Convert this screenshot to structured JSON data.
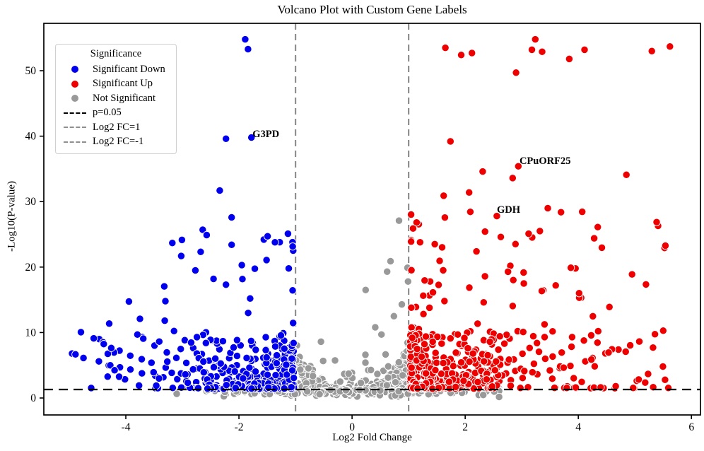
{
  "chart_data": {
    "type": "scatter",
    "title": "Volcano Plot with Custom Gene Labels",
    "xlabel": "Log2 Fold Change",
    "ylabel": "-Log10(P-value)",
    "xlim": [
      -5.45,
      6.16
    ],
    "ylim": [
      -2.59,
      57.24
    ],
    "xticks": [
      -4,
      -2,
      0,
      2,
      4,
      6
    ],
    "yticks": [
      0,
      10,
      20,
      30,
      40,
      50
    ],
    "grid": false,
    "legend": {
      "position": "upper-left",
      "title": "Significance",
      "items": [
        {
          "label": "Significant Down",
          "marker": "dot",
          "color": "#0000ee"
        },
        {
          "label": "Significant Up",
          "marker": "dot",
          "color": "#ee0000"
        },
        {
          "label": "Not Significant",
          "marker": "dot",
          "color": "#999999"
        },
        {
          "label": "p=0.05",
          "marker": "dashed-line",
          "color": "#000000"
        },
        {
          "label": "Log2 FC=1",
          "marker": "dashed-line",
          "color": "#8f8f8f"
        },
        {
          "label": "Log2 FC=-1",
          "marker": "dashed-line",
          "color": "#8f8f8f"
        }
      ]
    },
    "thresholds": {
      "p_value": 0.05,
      "log2fc": [
        -1,
        1
      ],
      "p_line_color": "#000000",
      "fc_line_color": "#8f8f8f"
    },
    "annotations": [
      {
        "label": "G3PD",
        "text_x": -1.76,
        "text_y": 41.2,
        "point": [
          -1.78,
          39.8
        ]
      },
      {
        "label": "CPuORF25",
        "text_x": 2.96,
        "text_y": 37.0,
        "point": [
          2.94,
          35.4
        ]
      },
      {
        "label": "GDH",
        "text_x": 2.56,
        "text_y": 29.6,
        "point": [
          2.56,
          27.8
        ]
      }
    ],
    "series": [
      {
        "name": "Significant Down",
        "key": "down",
        "color": "#0000ee",
        "outliers": [
          [
            -1.89,
            54.8
          ],
          [
            -1.84,
            53.3
          ],
          [
            -2.23,
            39.6
          ],
          [
            -1.78,
            39.8
          ],
          [
            -2.34,
            31.7
          ],
          [
            -2.13,
            27.6
          ],
          [
            -2.64,
            25.7
          ],
          [
            -2.57,
            24.9
          ],
          [
            -1.56,
            24.2
          ],
          [
            -2.13,
            23.4
          ],
          [
            -1.28,
            23.8
          ],
          [
            -3.02,
            21.7
          ],
          [
            -2.77,
            19.5
          ],
          [
            -1.95,
            20.3
          ],
          [
            -2.45,
            18.2
          ],
          [
            -3.3,
            14.8
          ],
          [
            -3.75,
            12.1
          ],
          [
            -1.12,
            19.8
          ],
          [
            -4.95,
            6.8
          ],
          [
            -4.47,
            9.0
          ],
          [
            -4.4,
            8.5
          ],
          [
            -3.71,
            9.3
          ]
        ]
      },
      {
        "name": "Significant Up",
        "key": "up",
        "color": "#ee0000",
        "outliers": [
          [
            1.65,
            53.5
          ],
          [
            1.93,
            52.4
          ],
          [
            2.12,
            52.7
          ],
          [
            2.9,
            49.7
          ],
          [
            3.18,
            53.2
          ],
          [
            3.24,
            54.8
          ],
          [
            3.36,
            52.9
          ],
          [
            3.84,
            51.8
          ],
          [
            4.11,
            53.2
          ],
          [
            5.3,
            53.0
          ],
          [
            5.62,
            53.7
          ],
          [
            1.74,
            39.2
          ],
          [
            2.31,
            34.6
          ],
          [
            2.84,
            33.6
          ],
          [
            2.94,
            35.4
          ],
          [
            4.85,
            34.1
          ],
          [
            3.46,
            29.0
          ],
          [
            5.41,
            26.3
          ],
          [
            2.56,
            27.8
          ],
          [
            1.62,
            30.9
          ],
          [
            2.07,
            31.4
          ],
          [
            2.63,
            24.6
          ],
          [
            3.32,
            25.5
          ],
          [
            4.28,
            24.4
          ],
          [
            3.95,
            19.8
          ],
          [
            4.55,
            13.9
          ],
          [
            3.6,
            17.2
          ],
          [
            2.2,
            22.4
          ],
          [
            1.38,
            17.8
          ],
          [
            1.13,
            13.9
          ],
          [
            4.05,
            15.3
          ]
        ]
      },
      {
        "name": "Not Significant",
        "key": "notsig",
        "color": "#999999",
        "outliers": [
          [
            0.83,
            27.1
          ],
          [
            0.68,
            20.9
          ],
          [
            0.62,
            19.3
          ],
          [
            0.98,
            19.9
          ],
          [
            0.99,
            17.8
          ],
          [
            0.24,
            16.5
          ],
          [
            0.41,
            10.8
          ],
          [
            0.88,
            14.3
          ],
          [
            0.74,
            12.5
          ],
          [
            0.52,
            9.7
          ],
          [
            -0.55,
            8.6
          ],
          [
            2.6,
            1.45
          ]
        ]
      }
    ],
    "generator": {
      "seed": 20240613,
      "marker_radius": 5.2,
      "marker_edge": "#ffffff",
      "sides": [
        {
          "series": 0,
          "sign": -1,
          "arcs": {
            "k": [
              0.35,
              0.62,
              1.1,
              2.0,
              3.6
            ],
            "counts": [
              20,
              18,
              16,
              14,
              12
            ],
            "y_start": 1.38,
            "y_max": 10.5,
            "dx_max": 3.95,
            "jitter": 0.25
          },
          "cloud": {
            "n": 120,
            "dx_max": 3.6,
            "x_pow": 1.9,
            "y_base": 1.5,
            "y_span": 25,
            "y_pow": 3.5
          },
          "hug": {
            "n": 190,
            "dx_max": 1.6,
            "x_pow": 2.0,
            "y_base": 1.4,
            "y_span": 7.5,
            "y_pow": 2.0
          }
        },
        {
          "series": 1,
          "sign": 1,
          "arcs": {
            "k": [
              0.45,
              0.8,
              1.4,
              2.5,
              4.5,
              8.0
            ],
            "counts": [
              22,
              20,
              18,
              16,
              13,
              11
            ],
            "y_start": 1.38,
            "y_max": 10.8,
            "dx_max": 4.62,
            "jitter": 0.25
          },
          "cloud": {
            "n": 165,
            "dx_max": 4.6,
            "x_pow": 1.7,
            "y_base": 1.5,
            "y_span": 27,
            "y_pow": 3.0
          },
          "hug": {
            "n": 200,
            "dx_max": 1.6,
            "x_pow": 2.2,
            "y_base": 1.4,
            "y_span": 8.5,
            "y_pow": 2.0
          }
        }
      ],
      "gray": {
        "above": {
          "n": 70,
          "x_span": 0.95,
          "y_base": 1.35,
          "y_span": 5.5,
          "y_pow": 3.0
        },
        "fan": {
          "n": 210,
          "right_frac": 0.68,
          "dx_base": 0.2,
          "dx_span": 0.8,
          "dx_pow": 0.45,
          "y_cap_base": 1.4,
          "y_cap_span": 7.5,
          "y_pow": 1.6
        },
        "below": {
          "n": 165,
          "x_sigma": 1.15,
          "x_clip": [
            -3.1,
            2.6
          ],
          "y_base": 0.15,
          "y_span": 1.1
        }
      }
    }
  }
}
